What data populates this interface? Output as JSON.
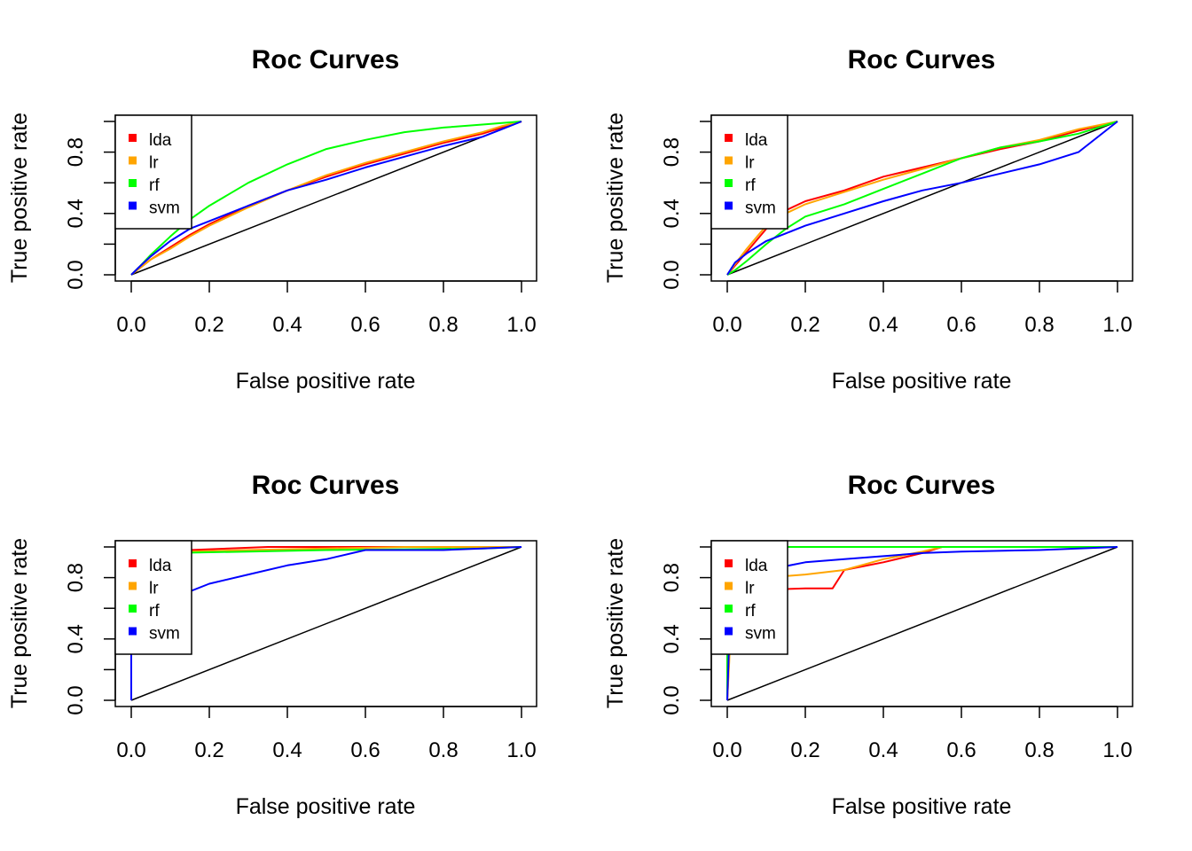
{
  "chart_data": [
    {
      "type": "line",
      "title": "Roc Curves",
      "xlabel": "False positive rate",
      "ylabel": "True positive rate",
      "xlim": [
        0,
        1
      ],
      "ylim": [
        0,
        1
      ],
      "x_ticks": [
        "0.0",
        "0.2",
        "0.4",
        "0.6",
        "0.8",
        "1.0"
      ],
      "y_ticks": [
        "0.0",
        "0.4",
        "0.8"
      ],
      "legend_position": "top-left",
      "diagonal": {
        "x": [
          0,
          1
        ],
        "y": [
          0,
          1
        ],
        "color": "#000000"
      },
      "series": [
        {
          "name": "lda",
          "color": "#FF0000",
          "x": [
            0,
            0.02,
            0.05,
            0.1,
            0.15,
            0.2,
            0.3,
            0.4,
            0.5,
            0.6,
            0.7,
            0.8,
            0.9,
            0.95,
            1.0
          ],
          "y": [
            0,
            0.04,
            0.1,
            0.18,
            0.26,
            0.33,
            0.45,
            0.55,
            0.64,
            0.72,
            0.79,
            0.86,
            0.92,
            0.96,
            1.0
          ]
        },
        {
          "name": "lr",
          "color": "#FFA500",
          "x": [
            0,
            0.02,
            0.05,
            0.1,
            0.15,
            0.2,
            0.3,
            0.4,
            0.5,
            0.6,
            0.7,
            0.8,
            0.9,
            0.95,
            1.0
          ],
          "y": [
            0,
            0.04,
            0.1,
            0.17,
            0.25,
            0.32,
            0.44,
            0.55,
            0.65,
            0.73,
            0.8,
            0.87,
            0.93,
            0.97,
            1.0
          ]
        },
        {
          "name": "rf",
          "color": "#00FF00",
          "x": [
            0,
            0.02,
            0.05,
            0.1,
            0.15,
            0.2,
            0.3,
            0.4,
            0.5,
            0.6,
            0.7,
            0.8,
            0.9,
            0.95,
            1.0
          ],
          "y": [
            0,
            0.05,
            0.13,
            0.25,
            0.36,
            0.45,
            0.6,
            0.72,
            0.82,
            0.88,
            0.93,
            0.96,
            0.98,
            0.99,
            1.0
          ]
        },
        {
          "name": "svm",
          "color": "#0000FF",
          "x": [
            0,
            0.02,
            0.05,
            0.1,
            0.15,
            0.2,
            0.3,
            0.4,
            0.5,
            0.6,
            0.7,
            0.8,
            0.9,
            0.95,
            1.0
          ],
          "y": [
            0,
            0.05,
            0.12,
            0.22,
            0.3,
            0.35,
            0.45,
            0.55,
            0.62,
            0.7,
            0.77,
            0.84,
            0.9,
            0.95,
            1.0
          ]
        }
      ]
    },
    {
      "type": "line",
      "title": "Roc Curves",
      "xlabel": "False positive rate",
      "ylabel": "True positive rate",
      "xlim": [
        0,
        1
      ],
      "ylim": [
        0,
        1
      ],
      "x_ticks": [
        "0.0",
        "0.2",
        "0.4",
        "0.6",
        "0.8",
        "1.0"
      ],
      "y_ticks": [
        "0.0",
        "0.4",
        "0.8"
      ],
      "legend_position": "top-left",
      "diagonal": {
        "x": [
          0,
          1
        ],
        "y": [
          0,
          1
        ],
        "color": "#000000"
      },
      "series": [
        {
          "name": "lda",
          "color": "#FF0000",
          "x": [
            0,
            0.02,
            0.05,
            0.1,
            0.15,
            0.2,
            0.3,
            0.4,
            0.5,
            0.6,
            0.7,
            0.8,
            0.9,
            1.0
          ],
          "y": [
            0,
            0.06,
            0.15,
            0.3,
            0.42,
            0.48,
            0.55,
            0.64,
            0.7,
            0.76,
            0.82,
            0.87,
            0.94,
            1.0
          ]
        },
        {
          "name": "lr",
          "color": "#FFA500",
          "x": [
            0,
            0.02,
            0.05,
            0.1,
            0.15,
            0.2,
            0.3,
            0.4,
            0.5,
            0.6,
            0.7,
            0.8,
            0.9,
            1.0
          ],
          "y": [
            0,
            0.07,
            0.17,
            0.32,
            0.4,
            0.46,
            0.54,
            0.62,
            0.69,
            0.76,
            0.83,
            0.88,
            0.95,
            1.0
          ]
        },
        {
          "name": "rf",
          "color": "#00FF00",
          "x": [
            0,
            0.02,
            0.05,
            0.1,
            0.15,
            0.2,
            0.3,
            0.4,
            0.5,
            0.6,
            0.7,
            0.8,
            0.9,
            1.0
          ],
          "y": [
            0,
            0.03,
            0.09,
            0.2,
            0.3,
            0.38,
            0.46,
            0.56,
            0.66,
            0.76,
            0.83,
            0.87,
            0.92,
            1.0
          ]
        },
        {
          "name": "svm",
          "color": "#0000FF",
          "x": [
            0,
            0.02,
            0.05,
            0.1,
            0.15,
            0.2,
            0.3,
            0.4,
            0.5,
            0.6,
            0.7,
            0.8,
            0.9,
            1.0
          ],
          "y": [
            0,
            0.08,
            0.14,
            0.22,
            0.27,
            0.32,
            0.4,
            0.48,
            0.55,
            0.6,
            0.66,
            0.72,
            0.8,
            1.0
          ]
        }
      ]
    },
    {
      "type": "line",
      "title": "Roc Curves",
      "xlabel": "False positive rate",
      "ylabel": "True positive rate",
      "xlim": [
        0,
        1
      ],
      "ylim": [
        0,
        1
      ],
      "x_ticks": [
        "0.0",
        "0.2",
        "0.4",
        "0.6",
        "0.8",
        "1.0"
      ],
      "y_ticks": [
        "0.0",
        "0.4",
        "0.8"
      ],
      "legend_position": "top-left",
      "diagonal": {
        "x": [
          0,
          1
        ],
        "y": [
          0,
          1
        ],
        "color": "#000000"
      },
      "series": [
        {
          "name": "lda",
          "color": "#FF0000",
          "x": [
            0,
            0,
            0.01,
            0.05,
            0.15,
            0.25,
            0.35,
            0.6,
            1.0
          ],
          "y": [
            0,
            0.7,
            0.95,
            0.97,
            0.98,
            0.99,
            1.0,
            1.0,
            1.0
          ]
        },
        {
          "name": "lr",
          "color": "#FFA500",
          "x": [
            0,
            0,
            0.01,
            0.05,
            0.15,
            0.3,
            0.5,
            0.7,
            1.0
          ],
          "y": [
            0,
            0.7,
            0.94,
            0.96,
            0.97,
            0.98,
            0.99,
            1.0,
            1.0
          ]
        },
        {
          "name": "rf",
          "color": "#00FF00",
          "x": [
            0,
            0,
            0.01,
            0.1,
            0.3,
            0.5,
            0.7,
            0.9,
            1.0
          ],
          "y": [
            0,
            0.75,
            0.95,
            0.96,
            0.97,
            0.98,
            0.985,
            0.99,
            1.0
          ]
        },
        {
          "name": "svm",
          "color": "#0000FF",
          "x": [
            0,
            0,
            0.05,
            0.1,
            0.15,
            0.2,
            0.3,
            0.4,
            0.5,
            0.6,
            0.7,
            0.8,
            0.9,
            1.0
          ],
          "y": [
            0,
            0.5,
            0.62,
            0.68,
            0.71,
            0.76,
            0.82,
            0.88,
            0.92,
            0.98,
            0.98,
            0.98,
            0.99,
            1.0
          ]
        }
      ]
    },
    {
      "type": "line",
      "title": "Roc Curves",
      "xlabel": "False positive rate",
      "ylabel": "True positive rate",
      "xlim": [
        0,
        1
      ],
      "ylim": [
        0,
        1
      ],
      "x_ticks": [
        "0.0",
        "0.2",
        "0.4",
        "0.6",
        "0.8",
        "1.0"
      ],
      "y_ticks": [
        "0.0",
        "0.4",
        "0.8"
      ],
      "legend_position": "top-left",
      "diagonal": {
        "x": [
          0,
          1
        ],
        "y": [
          0,
          1
        ],
        "color": "#000000"
      },
      "series": [
        {
          "name": "lda",
          "color": "#FF0000",
          "x": [
            0,
            0.005,
            0.01,
            0.05,
            0.1,
            0.2,
            0.27,
            0.3,
            0.4,
            0.5,
            0.55,
            0.6,
            1.0
          ],
          "y": [
            0,
            0.3,
            0.55,
            0.68,
            0.72,
            0.73,
            0.73,
            0.85,
            0.9,
            0.96,
            1.0,
            1.0,
            1.0
          ]
        },
        {
          "name": "lr",
          "color": "#FFA500",
          "x": [
            0,
            0.005,
            0.01,
            0.05,
            0.1,
            0.2,
            0.3,
            0.4,
            0.5,
            0.55,
            1.0
          ],
          "y": [
            0,
            0.25,
            0.6,
            0.75,
            0.8,
            0.82,
            0.85,
            0.92,
            0.97,
            1.0,
            1.0
          ]
        },
        {
          "name": "rf",
          "color": "#00FF00",
          "x": [
            0,
            0,
            0.005,
            1.0
          ],
          "y": [
            0,
            0.4,
            1.0,
            1.0
          ]
        },
        {
          "name": "svm",
          "color": "#0000FF",
          "x": [
            0,
            0.005,
            0.01,
            0.05,
            0.1,
            0.2,
            0.3,
            0.4,
            0.5,
            0.6,
            0.8,
            1.0
          ],
          "y": [
            0,
            0.4,
            0.6,
            0.78,
            0.85,
            0.9,
            0.92,
            0.94,
            0.96,
            0.97,
            0.98,
            1.0
          ]
        }
      ]
    }
  ]
}
